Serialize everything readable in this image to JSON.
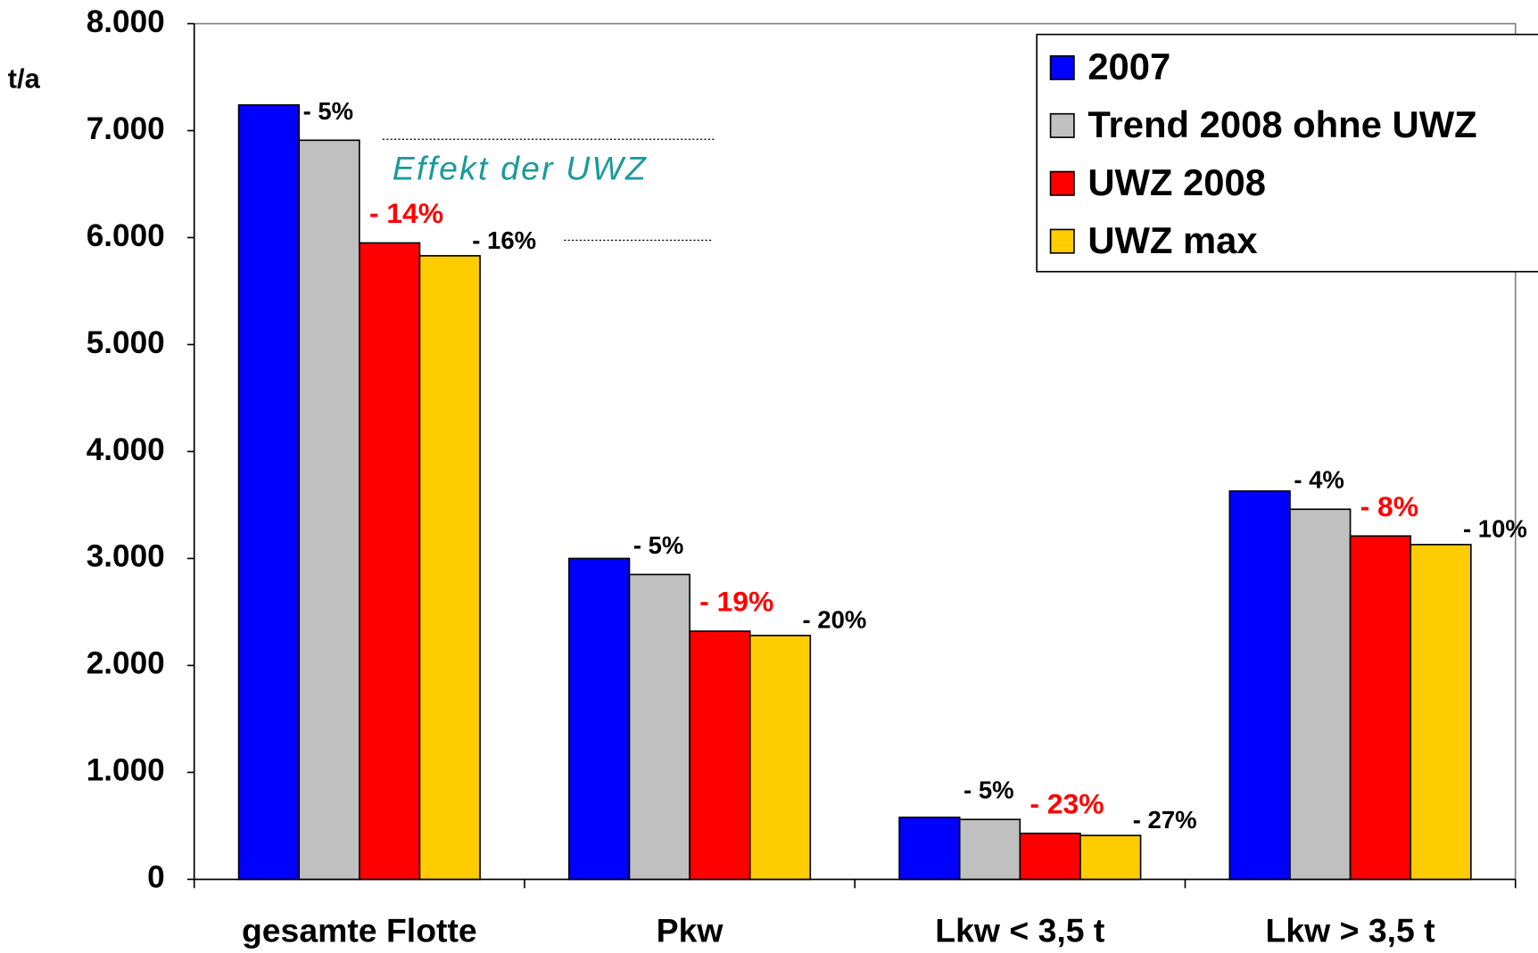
{
  "chart_data": {
    "type": "bar",
    "y_label": "t/a",
    "annotation": "Effekt der UWZ",
    "categories": [
      "gesamte Flotte",
      "Pkw",
      "Lkw < 3,5 t",
      "Lkw > 3,5 t"
    ],
    "series": [
      {
        "name": "2007",
        "color": "#0000ff",
        "values": [
          7240,
          3000,
          580,
          3630
        ]
      },
      {
        "name": "Trend 2008 ohne UWZ",
        "color": "#c0c0c0",
        "values": [
          6910,
          2850,
          560,
          3460
        ],
        "change_labels": [
          "- 5%",
          "- 5%",
          "- 5%",
          "- 4%"
        ],
        "label_color": "#000000"
      },
      {
        "name": "UWZ 2008",
        "color": "#ff0000",
        "values": [
          5950,
          2320,
          430,
          3210
        ],
        "change_labels": [
          "- 14%",
          "- 19%",
          "- 23%",
          "- 8%"
        ],
        "label_color": "#ff0000"
      },
      {
        "name": "UWZ max",
        "color": "#ffcc00",
        "values": [
          5830,
          2280,
          410,
          3130
        ],
        "change_labels": [
          "- 16%",
          "- 20%",
          "- 27%",
          "- 10%"
        ],
        "label_color": "#000000"
      }
    ],
    "ylim": [
      0,
      8000
    ],
    "yticks": [
      0,
      {
        "value": 1000,
        "label": "1.000"
      },
      {
        "value": 2000,
        "label": "2.000"
      },
      {
        "value": 3000,
        "label": "3.000"
      },
      {
        "value": 4000,
        "label": "4.000"
      },
      {
        "value": 5000,
        "label": "5.000"
      },
      {
        "value": 6000,
        "label": "6.000"
      },
      {
        "value": 7000,
        "label": "7.000"
      },
      {
        "value": 8000,
        "label": "8.000"
      }
    ],
    "legend": "top-right"
  }
}
